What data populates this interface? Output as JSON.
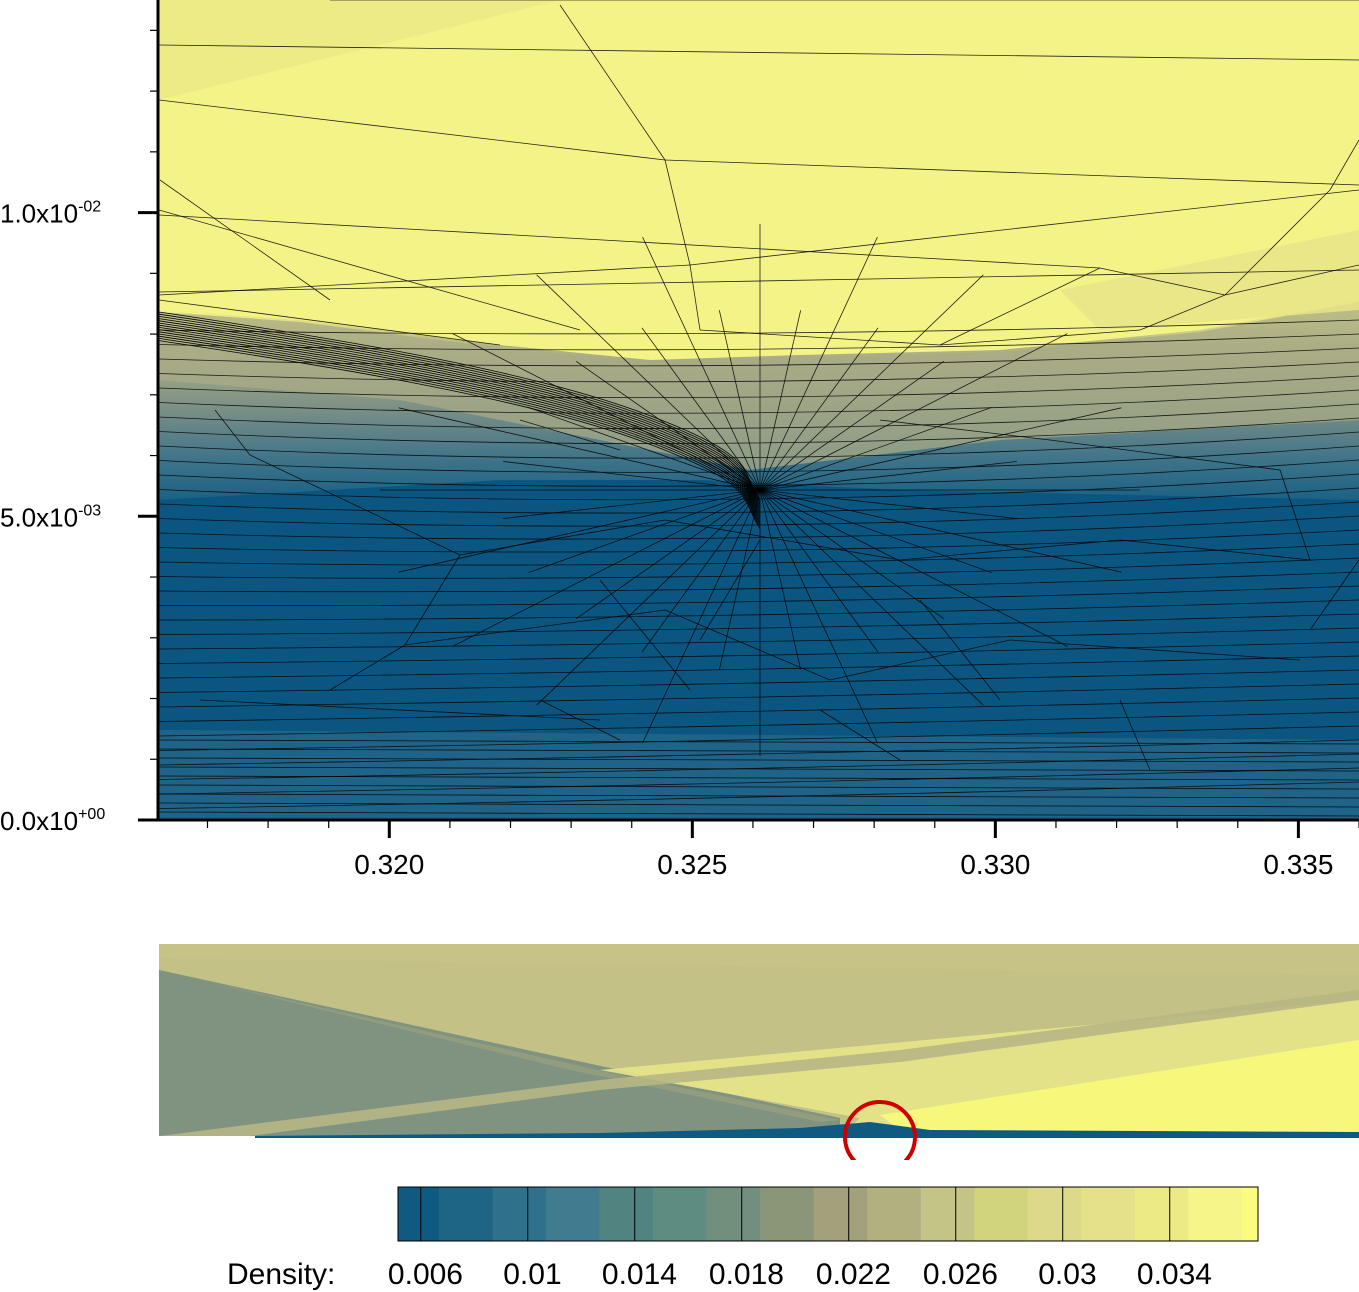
{
  "chart_data": [
    {
      "type": "contour",
      "xlim": [
        0.3162,
        0.336
      ],
      "ylim": [
        0.0,
        0.0135
      ],
      "x_ticks": [
        {
          "value": 0.32,
          "label": "0.320"
        },
        {
          "value": 0.325,
          "label": "0.325"
        },
        {
          "value": 0.33,
          "label": "0.330"
        },
        {
          "value": 0.335,
          "label": "0.335"
        }
      ],
      "y_ticks": [
        {
          "value": 0.0,
          "mantissa": "0.0x10",
          "exponent": "+00"
        },
        {
          "value": 0.005,
          "mantissa": "5.0x10",
          "exponent": "-03"
        },
        {
          "value": 0.01,
          "mantissa": "1.0x10",
          "exponent": "-02"
        }
      ],
      "x_minor_step": 0.001,
      "y_minor_step": 0.001,
      "grid": false,
      "mesh_overlay": true,
      "field": "Density",
      "regions": {
        "upper_free_stream_density": 0.034,
        "shock_layer_density": 0.022,
        "boundary_layer_density": 0.006,
        "shock_line": [
          [
            0.3162,
            0.0084
          ],
          [
            0.32,
            0.0077
          ],
          [
            0.323,
            0.0071
          ],
          [
            0.325,
            0.0063
          ],
          [
            0.3262,
            0.0055
          ]
        ]
      }
    },
    {
      "type": "contour",
      "description_role": "overview",
      "field": "Density",
      "highlight_marker": {
        "shape": "circle",
        "color": "#cc0000"
      }
    }
  ],
  "colorbar": {
    "label": "Density:",
    "levels": [
      0.004,
      0.006,
      0.008,
      0.01,
      0.012,
      0.014,
      0.016,
      0.018,
      0.02,
      0.022,
      0.024,
      0.026,
      0.028,
      0.03,
      0.032,
      0.034,
      0.036
    ],
    "colors": [
      "#0e5a80",
      "#1e6585",
      "#2f708b",
      "#417b8f",
      "#518381",
      "#5f8c80",
      "#728f7e",
      "#8a9677",
      "#a2a17b",
      "#b1b17f",
      "#c4c486",
      "#d1d47d",
      "#dcd98a",
      "#e4e18a",
      "#ebea85",
      "#f5f58a",
      "#fbfb7d"
    ],
    "tick_labels": [
      "0.006",
      "0.01",
      "0.014",
      "0.018",
      "0.022",
      "0.026",
      "0.03",
      "0.034"
    ],
    "tick_values": [
      0.006,
      0.01,
      0.014,
      0.018,
      0.022,
      0.026,
      0.03,
      0.034
    ]
  },
  "colors": {
    "low": "#0a5580",
    "mid": "#8f9b7f",
    "high": "#f4f387",
    "marker": "#cc0000"
  }
}
